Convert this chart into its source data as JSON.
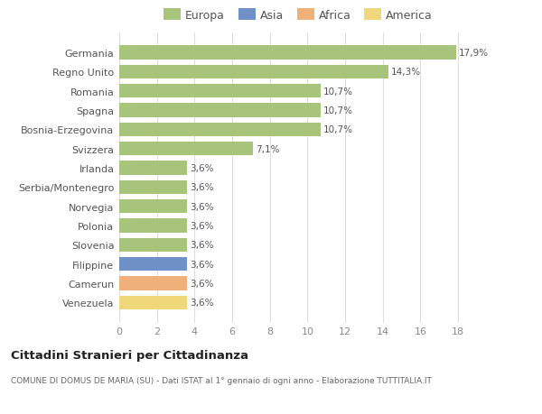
{
  "categories": [
    "Venezuela",
    "Camerun",
    "Filippine",
    "Slovenia",
    "Polonia",
    "Norvegia",
    "Serbia/Montenegro",
    "Irlanda",
    "Svizzera",
    "Bosnia-Erzegovina",
    "Spagna",
    "Romania",
    "Regno Unito",
    "Germania"
  ],
  "values": [
    3.6,
    3.6,
    3.6,
    3.6,
    3.6,
    3.6,
    3.6,
    3.6,
    7.1,
    10.7,
    10.7,
    10.7,
    14.3,
    17.9
  ],
  "labels": [
    "3,6%",
    "3,6%",
    "3,6%",
    "3,6%",
    "3,6%",
    "3,6%",
    "3,6%",
    "3,6%",
    "7,1%",
    "10,7%",
    "10,7%",
    "10,7%",
    "14,3%",
    "17,9%"
  ],
  "colors": [
    "#f0d87a",
    "#f0b07a",
    "#7090c8",
    "#a8c47a",
    "#a8c47a",
    "#a8c47a",
    "#a8c47a",
    "#a8c47a",
    "#a8c47a",
    "#a8c47a",
    "#a8c47a",
    "#a8c47a",
    "#a8c47a",
    "#a8c47a"
  ],
  "legend_labels": [
    "Europa",
    "Asia",
    "Africa",
    "America"
  ],
  "legend_colors": [
    "#a8c47a",
    "#7090c8",
    "#f0b07a",
    "#f0d87a"
  ],
  "title": "Cittadini Stranieri per Cittadinanza",
  "subtitle": "COMUNE DI DOMUS DE MARIA (SU) - Dati ISTAT al 1° gennaio di ogni anno - Elaborazione TUTTITALIA.IT",
  "xlim": [
    0,
    19
  ],
  "xticks": [
    0,
    2,
    4,
    6,
    8,
    10,
    12,
    14,
    16,
    18
  ],
  "background_color": "#ffffff",
  "grid_color": "#dddddd"
}
